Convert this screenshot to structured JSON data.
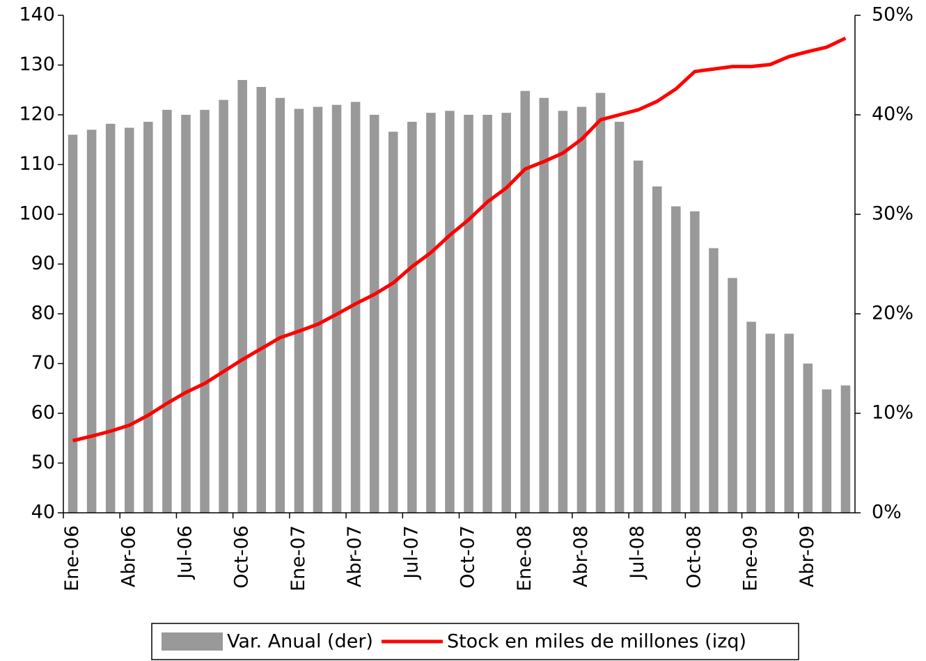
{
  "chart_data": {
    "type": "bar_line",
    "categories": [
      "Ene-06",
      null,
      null,
      "Abr-06",
      null,
      null,
      "Jul-06",
      null,
      null,
      "Oct-06",
      null,
      null,
      "Ene-07",
      null,
      null,
      "Abr-07",
      null,
      null,
      "Jul-07",
      null,
      null,
      "Oct-07",
      null,
      null,
      "Ene-08",
      null,
      null,
      "Abr-08",
      null,
      null,
      "Jul-08",
      null,
      null,
      "Oct-08",
      null,
      null,
      "Ene-09",
      null,
      null,
      "Abr-09",
      null,
      null
    ],
    "series": [
      {
        "name": "Var. Anual (der)",
        "color": "#999999",
        "axis": "y2",
        "type": "bar",
        "values": [
          38.0,
          38.5,
          39.1,
          38.7,
          39.3,
          40.5,
          40.0,
          40.5,
          41.5,
          43.5,
          42.8,
          41.7,
          40.6,
          40.8,
          41.0,
          41.3,
          40.0,
          38.3,
          39.3,
          40.2,
          40.4,
          40.0,
          40.0,
          40.2,
          42.4,
          41.7,
          40.4,
          40.8,
          42.2,
          39.3,
          35.4,
          32.8,
          30.8,
          30.3,
          26.6,
          23.6,
          19.2,
          18.0,
          18.0,
          15.0,
          12.4,
          12.8
        ]
      },
      {
        "name": "Stock en miles de millones (izq)",
        "color": "#ff0000",
        "type": "line",
        "values": [
          54.5,
          55.4,
          56.4,
          57.6,
          59.6,
          62.0,
          64.2,
          66.0,
          68.4,
          70.8,
          73.0,
          75.2,
          76.5,
          77.9,
          79.9,
          82.0,
          83.9,
          86.2,
          89.5,
          92.3,
          95.8,
          98.9,
          102.5,
          105.3,
          109.1,
          110.6,
          112.3,
          115.1,
          119.0,
          120.0,
          121.0,
          122.7,
          125.2,
          128.7,
          129.2,
          129.7,
          129.7,
          130.1,
          131.7,
          132.7,
          133.6,
          135.4
        ]
      }
    ],
    "ylim": [
      40,
      140
    ],
    "yticks": [
      40,
      50,
      60,
      70,
      80,
      90,
      100,
      110,
      120,
      130,
      140
    ],
    "y2lim": [
      0,
      50
    ],
    "y2ticks": [
      {
        "value": 0,
        "label": "0%"
      },
      {
        "value": 10,
        "label": "10%"
      },
      {
        "value": 20,
        "label": "20%"
      },
      {
        "value": 30,
        "label": "30%"
      },
      {
        "value": 40,
        "label": "40%"
      },
      {
        "value": 50,
        "label": "50%"
      }
    ],
    "legend": "bottom"
  }
}
